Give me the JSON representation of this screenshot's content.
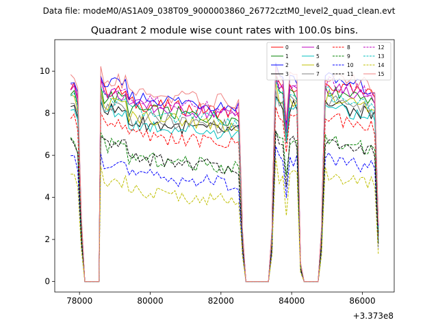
{
  "header": {
    "suptitle": "Data file: modeM0/AS1A09_038T09_9000003860_26772cztM0_level2_quad_clean.evt"
  },
  "chart_data": {
    "type": "line",
    "title": "Quadrant 2 module wise count rates with 100.0s bins.",
    "xlabel": "",
    "ylabel": "",
    "x_offset_label": "+3.373e8",
    "xlim": [
      77300,
      86900
    ],
    "ylim": [
      -0.5,
      11.5
    ],
    "x_ticks": [
      78000,
      80000,
      82000,
      84000,
      86000
    ],
    "y_ticks": [
      0,
      2,
      4,
      6,
      8,
      10
    ],
    "legend_position": "top-right",
    "segments": [
      {
        "start": 77750,
        "end": 78550,
        "n": 9,
        "shape": "seg1"
      },
      {
        "start": 78600,
        "end": 82600,
        "n": 41,
        "shape": "plat"
      },
      {
        "start": 82600,
        "end": 83450,
        "n": 9,
        "shape": "gap"
      },
      {
        "start": 83450,
        "end": 84250,
        "n": 9,
        "shape": "seg4"
      },
      {
        "start": 84250,
        "end": 84850,
        "n": 7,
        "shape": "gap2"
      },
      {
        "start": 84850,
        "end": 86450,
        "n": 17,
        "shape": "plat2"
      }
    ],
    "series": [
      {
        "name": "0",
        "color": "#ff0000",
        "dash": "solid",
        "level": 8.6
      },
      {
        "name": "1",
        "color": "#008000",
        "dash": "solid",
        "level": 8.3
      },
      {
        "name": "2",
        "color": "#0000ff",
        "dash": "solid",
        "level": 8.9
      },
      {
        "name": "3",
        "color": "#000000",
        "dash": "solid",
        "level": 7.7
      },
      {
        "name": "4",
        "color": "#bf00bf",
        "dash": "solid",
        "level": 8.5
      },
      {
        "name": "5",
        "color": "#00bfbf",
        "dash": "solid",
        "level": 7.6
      },
      {
        "name": "6",
        "color": "#bfbf00",
        "dash": "solid",
        "level": 8.0
      },
      {
        "name": "7",
        "color": "#808080",
        "dash": "solid",
        "level": 7.9
      },
      {
        "name": "8",
        "color": "#ff0000",
        "dash": "dashed",
        "level": 7.1
      },
      {
        "name": "9",
        "color": "#008000",
        "dash": "dashed",
        "level": 6.0
      },
      {
        "name": "10",
        "color": "#0000ff",
        "dash": "dashed",
        "level": 5.2
      },
      {
        "name": "11",
        "color": "#000000",
        "dash": "dashed",
        "level": 6.0
      },
      {
        "name": "12",
        "color": "#bf00bf",
        "dash": "dashed",
        "level": 8.7
      },
      {
        "name": "13",
        "color": "#00bfbf",
        "dash": "dashed",
        "level": 8.2
      },
      {
        "name": "14",
        "color": "#bfbf00",
        "dash": "dashed",
        "level": 4.4
      },
      {
        "name": "15",
        "color": "#f08080",
        "dash": "solid",
        "level": 9.1
      }
    ]
  }
}
